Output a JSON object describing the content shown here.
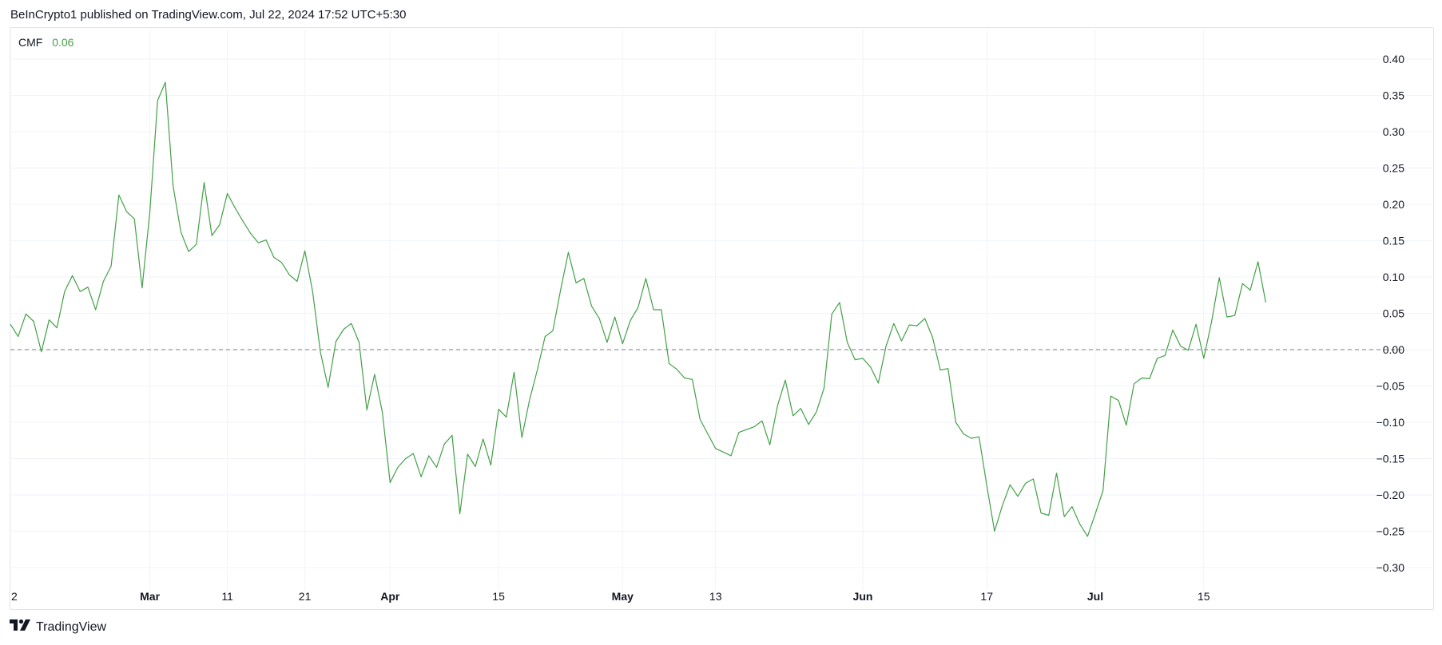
{
  "header": {
    "text": "BeInCrypto1 published on TradingView.com, Jul 22, 2024 17:52 UTC+5:30"
  },
  "legend": {
    "name": "CMF",
    "value": "0.06"
  },
  "footer": {
    "brand": "TradingView",
    "logo_icon": "tradingview-logo-icon"
  },
  "colors": {
    "line": "#43a047",
    "grid": "#f0f3fa",
    "zero_line": "#9598a1",
    "text": "#131722",
    "border": "#e0e3eb"
  },
  "chart_data": {
    "type": "line",
    "title": "",
    "xlabel": "",
    "ylabel": "",
    "ylim": [
      -0.33,
      0.43
    ],
    "yticks": [
      0.4,
      0.35,
      0.3,
      0.25,
      0.2,
      0.15,
      0.1,
      0.05,
      0.0,
      -0.05,
      -0.1,
      -0.15,
      -0.2,
      -0.25,
      -0.3
    ],
    "ytick_labels": [
      "0.40",
      "0.35",
      "0.30",
      "0.25",
      "0.20",
      "0.15",
      "0.10",
      "0.05",
      "0.00",
      "−0.05",
      "−0.10",
      "−0.15",
      "−0.20",
      "−0.25",
      "−0.30"
    ],
    "reference_line": {
      "y": 0.0,
      "style": "dashed"
    },
    "grid": true,
    "xticks": [
      {
        "label": "2",
        "x": 0,
        "month": false
      },
      {
        "label": "Mar",
        "x": 18,
        "month": true
      },
      {
        "label": "11",
        "x": 28,
        "month": false
      },
      {
        "label": "21",
        "x": 38,
        "month": false
      },
      {
        "label": "Apr",
        "x": 49,
        "month": true
      },
      {
        "label": "15",
        "x": 63,
        "month": false
      },
      {
        "label": "May",
        "x": 79,
        "month": true
      },
      {
        "label": "13",
        "x": 91,
        "month": false
      },
      {
        "label": "Jun",
        "x": 110,
        "month": true
      },
      {
        "label": "17",
        "x": 126,
        "month": false
      },
      {
        "label": "Jul",
        "x": 140,
        "month": true
      },
      {
        "label": "15",
        "x": 154,
        "month": false
      }
    ],
    "x_range": [
      0,
      176
    ],
    "series": [
      {
        "values": [
          0.035,
          0.018,
          0.049,
          0.039,
          -0.003,
          0.041,
          0.03,
          0.08,
          0.102,
          0.08,
          0.086,
          0.055,
          0.094,
          0.115,
          0.213,
          0.19,
          0.18,
          0.085,
          0.19,
          0.343,
          0.368,
          0.225,
          0.162,
          0.135,
          0.145,
          0.23,
          0.157,
          0.172,
          0.215,
          0.195,
          0.177,
          0.16,
          0.147,
          0.151,
          0.127,
          0.12,
          0.103,
          0.094,
          0.136,
          0.08,
          -0.003,
          -0.052,
          0.011,
          0.028,
          0.036,
          0.01,
          -0.083,
          -0.034,
          -0.086,
          -0.183,
          -0.162,
          -0.15,
          -0.143,
          -0.175,
          -0.146,
          -0.162,
          -0.13,
          -0.118,
          -0.226,
          -0.144,
          -0.161,
          -0.123,
          -0.159,
          -0.082,
          -0.093,
          -0.031,
          -0.121,
          -0.069,
          -0.028,
          0.018,
          0.026,
          0.082,
          0.134,
          0.092,
          0.098,
          0.06,
          0.043,
          0.01,
          0.045,
          0.008,
          0.04,
          0.058,
          0.098,
          0.055,
          0.055,
          -0.019,
          -0.027,
          -0.039,
          -0.041,
          -0.096,
          -0.116,
          -0.136,
          -0.141,
          -0.146,
          -0.114,
          -0.11,
          -0.106,
          -0.098,
          -0.131,
          -0.077,
          -0.042,
          -0.091,
          -0.081,
          -0.103,
          -0.086,
          -0.053,
          0.049,
          0.065,
          0.01,
          -0.014,
          -0.012,
          -0.024,
          -0.046,
          0.005,
          0.036,
          0.012,
          0.034,
          0.033,
          0.043,
          0.017,
          -0.028,
          -0.026,
          -0.1,
          -0.116,
          -0.122,
          -0.12,
          -0.187,
          -0.25,
          -0.215,
          -0.186,
          -0.202,
          -0.184,
          -0.178,
          -0.225,
          -0.228,
          -0.17,
          -0.23,
          -0.216,
          -0.24,
          -0.257,
          -0.226,
          -0.194,
          -0.064,
          -0.07,
          -0.104,
          -0.047,
          -0.039,
          -0.04,
          -0.012,
          -0.008,
          0.027,
          0.005,
          -0.001,
          0.035,
          -0.012,
          0.038,
          0.099,
          0.045,
          0.047,
          0.091,
          0.082,
          0.121,
          0.065
        ]
      }
    ]
  }
}
